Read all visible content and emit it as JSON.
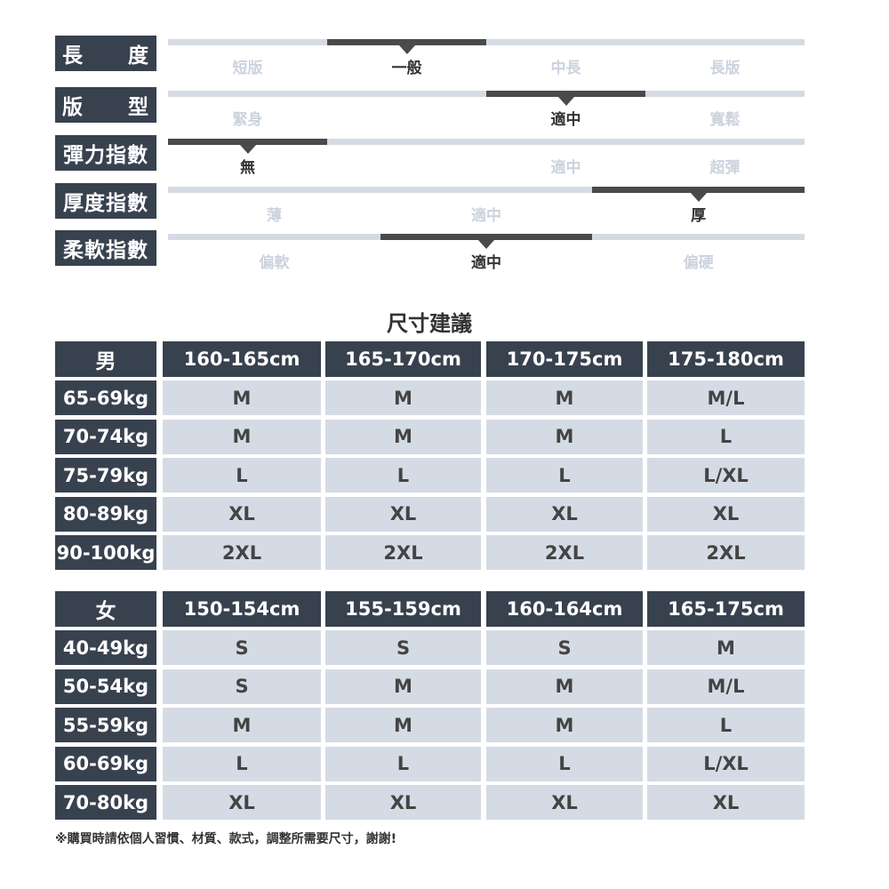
{
  "attributes": [
    {
      "label": "長度",
      "options": [
        "短版",
        "一般",
        "中長",
        "長版"
      ],
      "selected": 1
    },
    {
      "label": "版型",
      "options": [
        "緊身",
        "",
        "適中",
        "寬鬆"
      ],
      "selected": 2
    },
    {
      "label": "彈力指數",
      "options": [
        "無",
        "",
        "適中",
        "超彈"
      ],
      "selected": 0
    },
    {
      "label": "厚度指數",
      "options": [
        "薄",
        "適中",
        "厚"
      ],
      "selected": 2
    },
    {
      "label": "柔軟指數",
      "options": [
        "偏軟",
        "適中",
        "偏硬"
      ],
      "selected": 1
    }
  ],
  "title": "尺寸建議",
  "men": {
    "label": "男",
    "heights": [
      "160-165cm",
      "165-170cm",
      "170-175cm",
      "175-180cm"
    ],
    "rows": [
      [
        "65-69kg",
        "M",
        "M",
        "M",
        "M/L"
      ],
      [
        "70-74kg",
        "M",
        "M",
        "M",
        "L"
      ],
      [
        "75-79kg",
        "L",
        "L",
        "L",
        "L/XL"
      ],
      [
        "80-89kg",
        "XL",
        "XL",
        "XL",
        "XL"
      ],
      [
        "90-100kg",
        "2XL",
        "2XL",
        "2XL",
        "2XL"
      ]
    ]
  },
  "women": {
    "label": "女",
    "heights": [
      "150-154cm",
      "155-159cm",
      "160-164cm",
      "165-175cm"
    ],
    "rows": [
      [
        "40-49kg",
        "S",
        "S",
        "S",
        "M"
      ],
      [
        "50-54kg",
        "S",
        "M",
        "M",
        "M/L"
      ],
      [
        "55-59kg",
        "M",
        "M",
        "M",
        "L"
      ],
      [
        "60-69kg",
        "L",
        "L",
        "L",
        "L/XL"
      ],
      [
        "70-80kg",
        "XL",
        "XL",
        "XL",
        "XL"
      ]
    ]
  },
  "note": "※購買時請依個人習慣、材質、款式，調整所需要尺寸，謝謝!",
  "colors": {
    "header": "#38424f",
    "cell": "#d5dbe4",
    "selected": "#4a4a4a"
  }
}
